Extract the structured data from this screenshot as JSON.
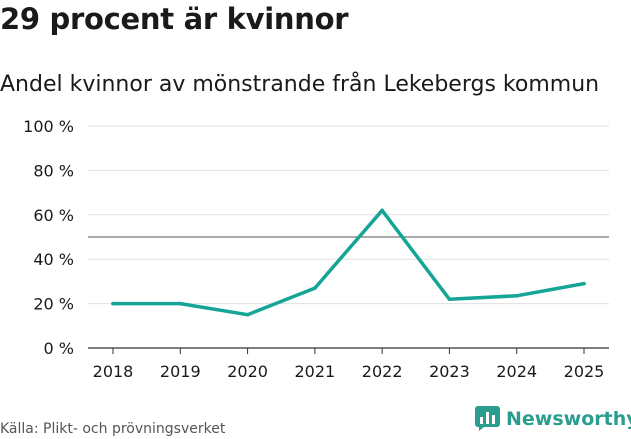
{
  "colors": {
    "line": "#14a596",
    "grid": "#e0e0e0",
    "reference": "#777777",
    "text": "#1a1a1a",
    "brand": "#2a9d8f"
  },
  "chart_data": {
    "type": "line",
    "title": "29 procent är kvinnor",
    "subtitle": "Andel kvinnor av mönstrande från Lekebergs kommun",
    "xlabel": "",
    "ylabel": "",
    "x": [
      "2018",
      "2019",
      "2020",
      "2021",
      "2022",
      "2023",
      "2024",
      "2025"
    ],
    "series": [
      {
        "name": "Andel kvinnor",
        "values": [
          20,
          20,
          15,
          27,
          62,
          22,
          23.5,
          29
        ]
      }
    ],
    "ylim": [
      0,
      100
    ],
    "yticks": [
      0,
      20,
      40,
      60,
      80,
      100
    ],
    "ytick_labels": [
      "0 %",
      "20 %",
      "40 %",
      "60 %",
      "80 %",
      "100 %"
    ],
    "reference_line": 50,
    "grid": true,
    "legend": "none"
  },
  "footer": {
    "source": "Källa: Plikt- och prövningsverket",
    "brand": "Newsworthy",
    "brand_icon": "newsworthy-logo-icon"
  }
}
